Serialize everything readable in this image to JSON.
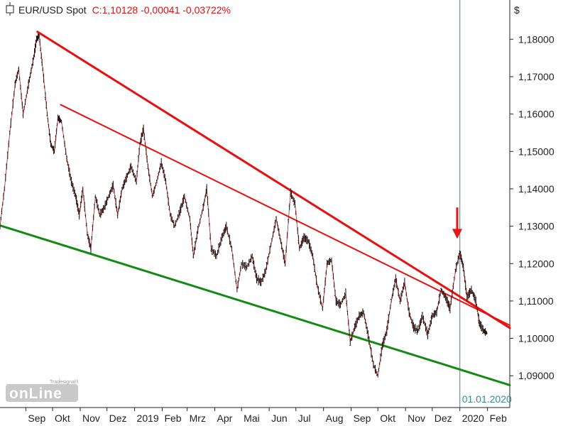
{
  "header": {
    "symbol": "EUR/USD Spot",
    "close_text": "C:1,10128 -0,00041 -0,03722%",
    "currency": "$"
  },
  "crosshair_date_label": "01.01.2020",
  "logo": {
    "small": "Tradesignal®",
    "big": "onLine"
  },
  "colors": {
    "price": "#101010",
    "resistance_main": "#e81010",
    "resistance_inner": "#e81010",
    "support": "#138a13",
    "arrow": "#e01818",
    "crosshair": "#3a8a9a",
    "change_text": "#e01010"
  },
  "chart_data": {
    "type": "line",
    "title": "EUR/USD Spot",
    "ylabel": "$",
    "ylim": [
      1.0815,
      1.1905
    ],
    "xlim": [
      "2018-08-03",
      "2020-02-26"
    ],
    "yticks": [
      1.18,
      1.17,
      1.16,
      1.15,
      1.14,
      1.13,
      1.12,
      1.11,
      1.1,
      1.09
    ],
    "ytick_labels": [
      "1,18000",
      "1,17000",
      "1,16000",
      "1,15000",
      "1,14000",
      "1,13000",
      "1,12000",
      "1,11000",
      "1,10000",
      "1,09000"
    ],
    "xticks": [
      {
        "label": "Sep",
        "date": "2018-09-01"
      },
      {
        "label": "Okt",
        "date": "2018-10-01"
      },
      {
        "label": "Nov",
        "date": "2018-11-01"
      },
      {
        "label": "Dez",
        "date": "2018-12-01"
      },
      {
        "label": "2019",
        "date": "2019-01-01"
      },
      {
        "label": "Feb",
        "date": "2019-02-01"
      },
      {
        "label": "Mrz",
        "date": "2019-03-01"
      },
      {
        "label": "Apr",
        "date": "2019-04-01"
      },
      {
        "label": "Mai",
        "date": "2019-05-01"
      },
      {
        "label": "Jun",
        "date": "2019-06-01"
      },
      {
        "label": "Jul",
        "date": "2019-07-01"
      },
      {
        "label": "Aug",
        "date": "2019-08-01"
      },
      {
        "label": "Sep",
        "date": "2019-09-01"
      },
      {
        "label": "Okt",
        "date": "2019-10-01"
      },
      {
        "label": "Nov",
        "date": "2019-11-01"
      },
      {
        "label": "Dez",
        "date": "2019-12-01"
      },
      {
        "label": "2020",
        "date": "2020-01-01"
      },
      {
        "label": "Feb",
        "date": "2020-02-01"
      }
    ],
    "price_series": [
      [
        "2018-08-03",
        1.13
      ],
      [
        "2018-08-08",
        1.14
      ],
      [
        "2018-08-14",
        1.155
      ],
      [
        "2018-08-20",
        1.168
      ],
      [
        "2018-08-24",
        1.172
      ],
      [
        "2018-08-29",
        1.16
      ],
      [
        "2018-09-04",
        1.168
      ],
      [
        "2018-09-09",
        1.174
      ],
      [
        "2018-09-13",
        1.18
      ],
      [
        "2018-09-16",
        1.181
      ],
      [
        "2018-09-20",
        1.172
      ],
      [
        "2018-09-25",
        1.16
      ],
      [
        "2018-09-29",
        1.152
      ],
      [
        "2018-10-03",
        1.15
      ],
      [
        "2018-10-07",
        1.159
      ],
      [
        "2018-10-11",
        1.158
      ],
      [
        "2018-10-17",
        1.148
      ],
      [
        "2018-10-22",
        1.142
      ],
      [
        "2018-10-27",
        1.138
      ],
      [
        "2018-10-31",
        1.133
      ],
      [
        "2018-11-04",
        1.14
      ],
      [
        "2018-11-09",
        1.128
      ],
      [
        "2018-11-13",
        1.124
      ],
      [
        "2018-11-18",
        1.138
      ],
      [
        "2018-11-23",
        1.133
      ],
      [
        "2018-11-28",
        1.135
      ],
      [
        "2018-12-03",
        1.138
      ],
      [
        "2018-12-08",
        1.141
      ],
      [
        "2018-12-13",
        1.133
      ],
      [
        "2018-12-18",
        1.14
      ],
      [
        "2018-12-23",
        1.143
      ],
      [
        "2018-12-28",
        1.146
      ],
      [
        "2019-01-03",
        1.142
      ],
      [
        "2019-01-07",
        1.152
      ],
      [
        "2019-01-11",
        1.156
      ],
      [
        "2019-01-16",
        1.146
      ],
      [
        "2019-01-21",
        1.138
      ],
      [
        "2019-01-26",
        1.142
      ],
      [
        "2019-01-31",
        1.147
      ],
      [
        "2019-02-05",
        1.142
      ],
      [
        "2019-02-10",
        1.133
      ],
      [
        "2019-02-15",
        1.13
      ],
      [
        "2019-02-21",
        1.134
      ],
      [
        "2019-02-26",
        1.138
      ],
      [
        "2019-03-04",
        1.132
      ],
      [
        "2019-03-08",
        1.122
      ],
      [
        "2019-03-13",
        1.129
      ],
      [
        "2019-03-19",
        1.135
      ],
      [
        "2019-03-23",
        1.14
      ],
      [
        "2019-03-28",
        1.124
      ],
      [
        "2019-04-03",
        1.122
      ],
      [
        "2019-04-09",
        1.127
      ],
      [
        "2019-04-14",
        1.13
      ],
      [
        "2019-04-20",
        1.124
      ],
      [
        "2019-04-26",
        1.113
      ],
      [
        "2019-05-01",
        1.12
      ],
      [
        "2019-05-07",
        1.119
      ],
      [
        "2019-05-13",
        1.122
      ],
      [
        "2019-05-18",
        1.116
      ],
      [
        "2019-05-23",
        1.115
      ],
      [
        "2019-05-28",
        1.118
      ],
      [
        "2019-06-03",
        1.125
      ],
      [
        "2019-06-09",
        1.132
      ],
      [
        "2019-06-14",
        1.126
      ],
      [
        "2019-06-19",
        1.12
      ],
      [
        "2019-06-25",
        1.139
      ],
      [
        "2019-06-30",
        1.136
      ],
      [
        "2019-07-05",
        1.124
      ],
      [
        "2019-07-10",
        1.127
      ],
      [
        "2019-07-15",
        1.126
      ],
      [
        "2019-07-20",
        1.122
      ],
      [
        "2019-07-25",
        1.114
      ],
      [
        "2019-07-31",
        1.108
      ],
      [
        "2019-08-05",
        1.12
      ],
      [
        "2019-08-10",
        1.121
      ],
      [
        "2019-08-15",
        1.11
      ],
      [
        "2019-08-20",
        1.109
      ],
      [
        "2019-08-26",
        1.112
      ],
      [
        "2019-08-31",
        1.099
      ],
      [
        "2019-09-05",
        1.103
      ],
      [
        "2019-09-10",
        1.106
      ],
      [
        "2019-09-15",
        1.107
      ],
      [
        "2019-09-20",
        1.101
      ],
      [
        "2019-09-26",
        1.093
      ],
      [
        "2019-10-01",
        1.09
      ],
      [
        "2019-10-06",
        1.098
      ],
      [
        "2019-10-11",
        1.102
      ],
      [
        "2019-10-16",
        1.11
      ],
      [
        "2019-10-21",
        1.116
      ],
      [
        "2019-10-26",
        1.11
      ],
      [
        "2019-10-31",
        1.115
      ],
      [
        "2019-11-05",
        1.107
      ],
      [
        "2019-11-10",
        1.103
      ],
      [
        "2019-11-15",
        1.102
      ],
      [
        "2019-11-20",
        1.106
      ],
      [
        "2019-11-26",
        1.101
      ],
      [
        "2019-12-01",
        1.106
      ],
      [
        "2019-12-06",
        1.107
      ],
      [
        "2019-12-11",
        1.113
      ],
      [
        "2019-12-16",
        1.111
      ],
      [
        "2019-12-21",
        1.108
      ],
      [
        "2019-12-27",
        1.118
      ],
      [
        "2020-01-01",
        1.123
      ],
      [
        "2020-01-05",
        1.119
      ],
      [
        "2020-01-09",
        1.111
      ],
      [
        "2020-01-14",
        1.113
      ],
      [
        "2020-01-19",
        1.11
      ],
      [
        "2020-01-23",
        1.104
      ],
      [
        "2020-01-28",
        1.102
      ],
      [
        "2020-02-01",
        1.1013
      ]
    ],
    "trendlines": [
      {
        "role": "resistance_main",
        "from": [
          "2018-09-14",
          1.182
        ],
        "to": [
          "2020-02-26",
          1.1028
        ]
      },
      {
        "role": "resistance_inner",
        "from": [
          "2018-10-10",
          1.1625
        ],
        "to": [
          "2020-02-26",
          1.1035
        ]
      },
      {
        "role": "support",
        "from": [
          "2018-08-03",
          1.1302
        ],
        "to": [
          "2020-02-26",
          1.0875
        ]
      }
    ],
    "crosshair_date": "2020-01-01",
    "arrow_annotation": {
      "date": "2019-12-29",
      "y_from": 1.135,
      "y_to": 1.127
    },
    "grid": false,
    "legend": "none"
  }
}
